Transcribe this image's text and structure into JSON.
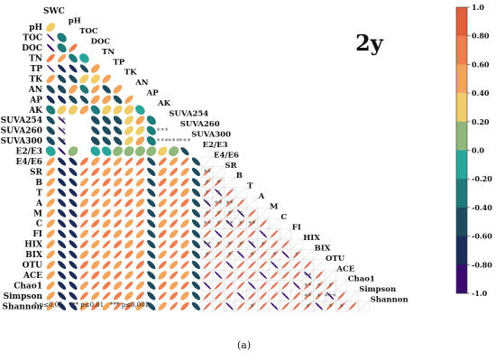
{
  "chart_data": {
    "type": "heatmap",
    "title": "2y",
    "caption": "(a)",
    "variables": [
      "SWC",
      "pH",
      "TOC",
      "DOC",
      "TN",
      "TP",
      "TK",
      "AN",
      "AP",
      "AK",
      "SUVA254",
      "SUVA260",
      "SUVA300",
      "E2/E3",
      "E4/E6",
      "SR",
      "B",
      "T",
      "A",
      "M",
      "C",
      "FI",
      "HIX",
      "BIX",
      "OTU",
      "ACE",
      "Chao1",
      "Simpson",
      "Shannon"
    ],
    "colorbar": {
      "range": [
        -1.0,
        1.0
      ],
      "ticks": [
        "1.0",
        "0.80",
        "0.60",
        "0.40",
        "0.20",
        "0.0",
        "-0.20",
        "-0.40",
        "-0.60",
        "-0.80",
        "-1.0"
      ],
      "colors": [
        "#3a0c6e",
        "#1d2d5a",
        "#1f4b5e",
        "#1f7a7a",
        "#2aa59b",
        "#8fb87a",
        "#efcd6b",
        "#f4a55d",
        "#ef7f4e",
        "#e0603e"
      ]
    },
    "footnote": [
      "* p≤0.05",
      "** p≤0.01",
      "*** p≤0.001"
    ],
    "lower_ellipse_cells": [
      [
        1,
        0,
        0.3
      ],
      [
        2,
        0,
        -0.92
      ],
      [
        2,
        1,
        -0.25
      ],
      [
        3,
        0,
        -0.85
      ],
      [
        3,
        1,
        -0.3
      ],
      [
        3,
        2,
        0.62
      ],
      [
        4,
        0,
        0.62
      ],
      [
        4,
        1,
        0.58
      ],
      [
        4,
        2,
        -0.4
      ],
      [
        4,
        3,
        -0.18
      ],
      [
        5,
        0,
        -0.92
      ],
      [
        5,
        1,
        -0.68
      ],
      [
        5,
        2,
        -0.65
      ],
      [
        5,
        3,
        -0.6
      ],
      [
        5,
        4,
        0.42
      ],
      [
        6,
        0,
        0.52
      ],
      [
        6,
        1,
        -0.55
      ],
      [
        6,
        2,
        -0.55
      ],
      [
        6,
        3,
        0.35
      ],
      [
        6,
        4,
        0.3
      ],
      [
        6,
        5,
        0.48
      ],
      [
        7,
        0,
        -0.55
      ],
      [
        7,
        1,
        -0.5
      ],
      [
        7,
        2,
        0.4
      ],
      [
        7,
        3,
        -0.38
      ],
      [
        7,
        4,
        0.52
      ],
      [
        7,
        5,
        -0.52
      ],
      [
        7,
        6,
        0.45
      ],
      [
        8,
        0,
        -0.62
      ],
      [
        8,
        1,
        -0.62
      ],
      [
        8,
        2,
        -0.55
      ],
      [
        8,
        3,
        -0.58
      ],
      [
        8,
        4,
        0.4
      ],
      [
        8,
        5,
        0.4
      ],
      [
        8,
        6,
        -0.5
      ],
      [
        8,
        7,
        0.55
      ],
      [
        9,
        0,
        -0.28
      ],
      [
        9,
        1,
        0.3
      ],
      [
        9,
        2,
        0.25
      ],
      [
        9,
        3,
        0.4
      ],
      [
        9,
        4,
        -0.3
      ],
      [
        9,
        5,
        0.25
      ],
      [
        9,
        6,
        0.3
      ],
      [
        9,
        7,
        0.22
      ],
      [
        9,
        8,
        -0.2
      ],
      [
        10,
        0,
        -0.55
      ],
      [
        10,
        1,
        -0.9
      ],
      [
        10,
        4,
        -0.45
      ],
      [
        10,
        5,
        -0.48
      ],
      [
        10,
        6,
        -0.45
      ],
      [
        10,
        7,
        0.35
      ],
      [
        10,
        8,
        0.4
      ],
      [
        10,
        9,
        -0.3
      ],
      [
        11,
        0,
        -0.5
      ],
      [
        11,
        1,
        -0.92
      ],
      [
        11,
        4,
        -0.55
      ],
      [
        11,
        5,
        -0.45
      ],
      [
        11,
        6,
        -0.5
      ],
      [
        11,
        7,
        0.38
      ],
      [
        11,
        8,
        0.35
      ],
      [
        11,
        9,
        -0.3
      ],
      [
        12,
        0,
        -0.5
      ],
      [
        12,
        1,
        -0.78
      ],
      [
        12,
        4,
        -0.42
      ],
      [
        12,
        5,
        -0.5
      ],
      [
        12,
        6,
        -0.48
      ],
      [
        12,
        7,
        0.35
      ],
      [
        12,
        8,
        0.4
      ],
      [
        12,
        9,
        -0.3
      ],
      [
        13,
        0,
        -0.12
      ],
      [
        13,
        1,
        -0.85
      ],
      [
        13,
        2,
        0.15
      ],
      [
        13,
        4,
        -0.15
      ],
      [
        13,
        5,
        -0.2
      ],
      [
        13,
        6,
        0.12
      ],
      [
        13,
        7,
        0.1
      ],
      [
        13,
        8,
        0.08
      ],
      [
        13,
        9,
        0.1
      ],
      [
        13,
        10,
        0.25
      ],
      [
        13,
        11,
        0.1
      ],
      [
        13,
        12,
        -0.6
      ]
    ],
    "lower_block": {
      "row_start": 14,
      "row_end": 28,
      "col_start": 0,
      "col_end": 13,
      "pattern": [
        "pos_circle",
        "neg_circle",
        "neg_circle",
        "pos",
        "pos",
        "pos",
        "pos",
        "pos",
        "pos",
        "neg",
        "pos",
        "pos",
        "pos",
        "neg"
      ]
    },
    "upper_stars": [
      [
        10,
        1,
        "**"
      ],
      [
        11,
        1,
        "**"
      ],
      [
        12,
        1,
        "**"
      ],
      [
        12,
        10,
        "***"
      ],
      [
        12,
        11,
        "***"
      ],
      [
        12,
        12,
        "***"
      ],
      [
        11,
        10,
        "***"
      ],
      [
        15,
        14,
        "**"
      ],
      [
        16,
        14,
        "*"
      ],
      [
        16,
        15,
        "*"
      ],
      [
        17,
        14,
        "*"
      ],
      [
        17,
        15,
        "*"
      ],
      [
        18,
        14,
        "*"
      ],
      [
        18,
        15,
        "**"
      ],
      [
        18,
        16,
        "**"
      ],
      [
        19,
        14,
        "*"
      ],
      [
        19,
        15,
        "*"
      ],
      [
        19,
        16,
        "*"
      ],
      [
        19,
        17,
        "*"
      ],
      [
        20,
        14,
        "**"
      ],
      [
        20,
        15,
        "*"
      ],
      [
        20,
        16,
        "**"
      ],
      [
        20,
        17,
        "*"
      ],
      [
        20,
        18,
        "**"
      ],
      [
        22,
        14,
        "**"
      ],
      [
        22,
        15,
        "*"
      ],
      [
        22,
        16,
        "*"
      ],
      [
        22,
        17,
        "*"
      ],
      [
        22,
        18,
        "*"
      ],
      [
        22,
        19,
        "*"
      ],
      [
        23,
        14,
        "*"
      ],
      [
        23,
        16,
        "*"
      ],
      [
        23,
        18,
        "*"
      ],
      [
        23,
        20,
        "*"
      ],
      [
        23,
        22,
        "*"
      ],
      [
        25,
        23,
        "**"
      ],
      [
        26,
        23,
        "**"
      ],
      [
        26,
        24,
        "*"
      ],
      [
        26,
        25,
        "*"
      ],
      [
        27,
        23,
        "**"
      ],
      [
        27,
        24,
        "*"
      ],
      [
        27,
        25,
        "***"
      ],
      [
        28,
        23,
        "*"
      ],
      [
        28,
        25,
        "*"
      ],
      [
        28,
        26,
        "*"
      ],
      [
        28,
        18,
        "*"
      ]
    ]
  }
}
